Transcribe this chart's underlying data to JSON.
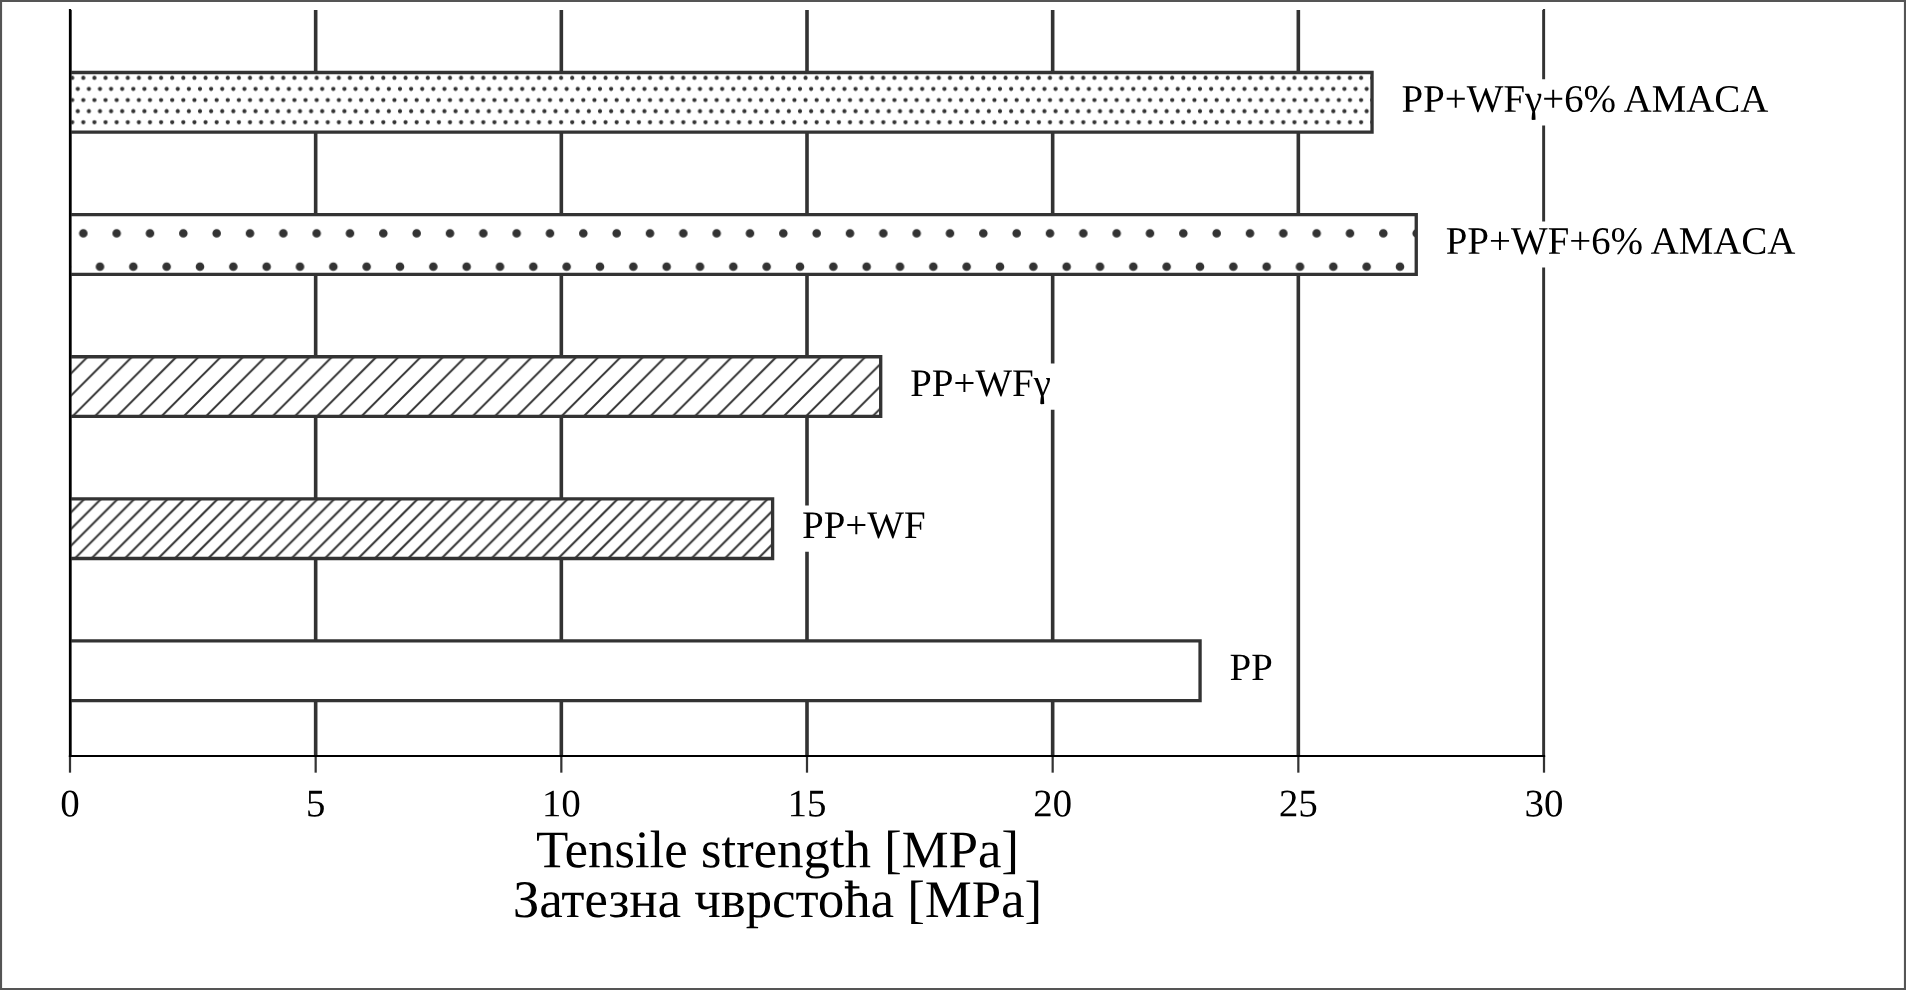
{
  "chart_data": {
    "type": "bar",
    "orientation": "horizontal",
    "categories": [
      "PP+WFγ+6% AMACA",
      "PP+WF+6% AMACA",
      "PP+WFγ",
      "PP+WF",
      "PP"
    ],
    "values": [
      26.5,
      27.4,
      16.5,
      14.3,
      23.0
    ],
    "colors": [
      "#333333",
      "#333333",
      "#333333",
      "#333333",
      "#ffffff"
    ],
    "xlabel": "Tensile strength [MPa]\nЗатезна чврстоћа [MPa]",
    "xlim": [
      0,
      30
    ],
    "xticks": [
      0,
      5,
      10,
      15,
      20,
      25,
      30
    ],
    "grid": "x",
    "legend": false
  }
}
